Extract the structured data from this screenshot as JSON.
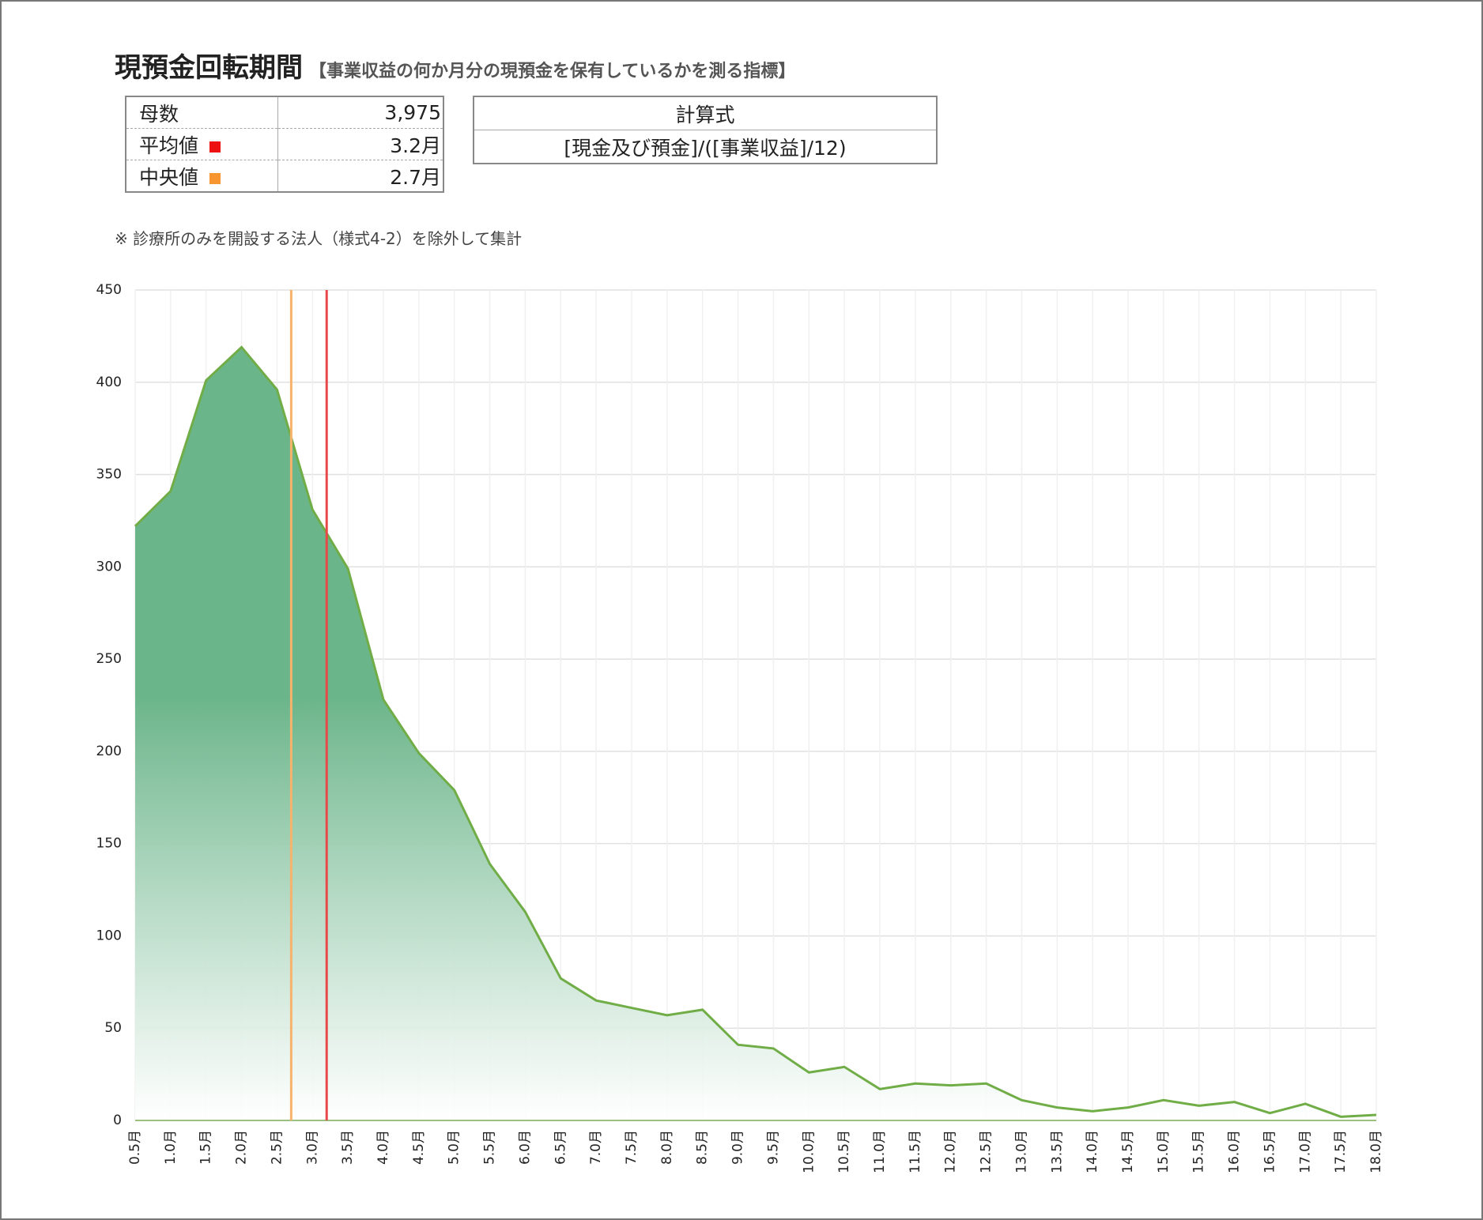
{
  "header": {
    "title": "現預金回転期間",
    "subtitle": "【事業収益の何か月分の現預金を保有しているかを測る指標】"
  },
  "stats_table": {
    "rows": [
      {
        "label": "母数",
        "value": "3,975"
      },
      {
        "label": "平均値",
        "value": "3.2月",
        "color": "#ee1111"
      },
      {
        "label": "中央値",
        "value": "2.7月",
        "color": "#f7962f"
      }
    ]
  },
  "formula_table": {
    "header": "計算式",
    "formula": "[現金及び預金]/([事業収益]/12)"
  },
  "note": "※ 診療所のみを開設する法人（様式4-2）を除外して集計",
  "chart_data": {
    "type": "area",
    "x": [
      0.5,
      1.0,
      1.5,
      2.0,
      2.5,
      3.0,
      3.5,
      4.0,
      4.5,
      5.0,
      5.5,
      6.0,
      6.5,
      7.0,
      7.5,
      8.0,
      8.5,
      9.0,
      9.5,
      10.0,
      10.5,
      11.0,
      11.5,
      12.0,
      12.5,
      13.0,
      13.5,
      14.0,
      14.5,
      15.0,
      15.5,
      16.0,
      16.5,
      17.0,
      17.5,
      18.0
    ],
    "series": [
      {
        "color": "#70ad47",
        "values": [
          322,
          341,
          401,
          419,
          396,
          331,
          299,
          228,
          199,
          179,
          139,
          113,
          77,
          65,
          61,
          57,
          60,
          41,
          39,
          26,
          29,
          17,
          20,
          19,
          20,
          11,
          7,
          5,
          7,
          11,
          8,
          10,
          4,
          9,
          2,
          3
        ]
      }
    ],
    "reference_lines": [
      {
        "x": 2.7,
        "color": "#f7b26b"
      },
      {
        "x": 3.2,
        "color": "#e84848"
      }
    ],
    "xlim": [
      0.5,
      18.0
    ],
    "xticks": [
      {
        "value": 0.5,
        "label": "0.5月"
      },
      {
        "value": 1.0,
        "label": "1.0月"
      },
      {
        "value": 1.5,
        "label": "1.5月"
      },
      {
        "value": 2.0,
        "label": "2.0月"
      },
      {
        "value": 2.5,
        "label": "2.5月"
      },
      {
        "value": 3.0,
        "label": "3.0月"
      },
      {
        "value": 3.5,
        "label": "3.5月"
      },
      {
        "value": 4.0,
        "label": "4.0月"
      },
      {
        "value": 4.5,
        "label": "4.5月"
      },
      {
        "value": 5.0,
        "label": "5.0月"
      },
      {
        "value": 5.5,
        "label": "5.5月"
      },
      {
        "value": 6.0,
        "label": "6.0月"
      },
      {
        "value": 6.5,
        "label": "6.5月"
      },
      {
        "value": 7.0,
        "label": "7.0月"
      },
      {
        "value": 7.5,
        "label": "7.5月"
      },
      {
        "value": 8.0,
        "label": "8.0月"
      },
      {
        "value": 8.5,
        "label": "8.5月"
      },
      {
        "value": 9.0,
        "label": "9.0月"
      },
      {
        "value": 9.5,
        "label": "9.5月"
      },
      {
        "value": 10.0,
        "label": "10.0月"
      },
      {
        "value": 10.5,
        "label": "10.5月"
      },
      {
        "value": 11.0,
        "label": "11.0月"
      },
      {
        "value": 11.5,
        "label": "11.5月"
      },
      {
        "value": 12.0,
        "label": "12.0月"
      },
      {
        "value": 12.5,
        "label": "12.5月"
      },
      {
        "value": 13.0,
        "label": "13.0月"
      },
      {
        "value": 13.5,
        "label": "13.5月"
      },
      {
        "value": 14.0,
        "label": "14.0月"
      },
      {
        "value": 14.5,
        "label": "14.5月"
      },
      {
        "value": 15.0,
        "label": "15.0月"
      },
      {
        "value": 15.5,
        "label": "15.5月"
      },
      {
        "value": 16.0,
        "label": "16.0月"
      },
      {
        "value": 16.5,
        "label": "16.5月"
      },
      {
        "value": 17.0,
        "label": "17.0月"
      },
      {
        "value": 17.5,
        "label": "17.5月"
      },
      {
        "value": 18.0,
        "label": "18.0月"
      }
    ],
    "ylim": [
      0,
      450
    ],
    "yticks": [
      0,
      50,
      100,
      150,
      200,
      250,
      300,
      350,
      400,
      450
    ],
    "grid": true
  }
}
